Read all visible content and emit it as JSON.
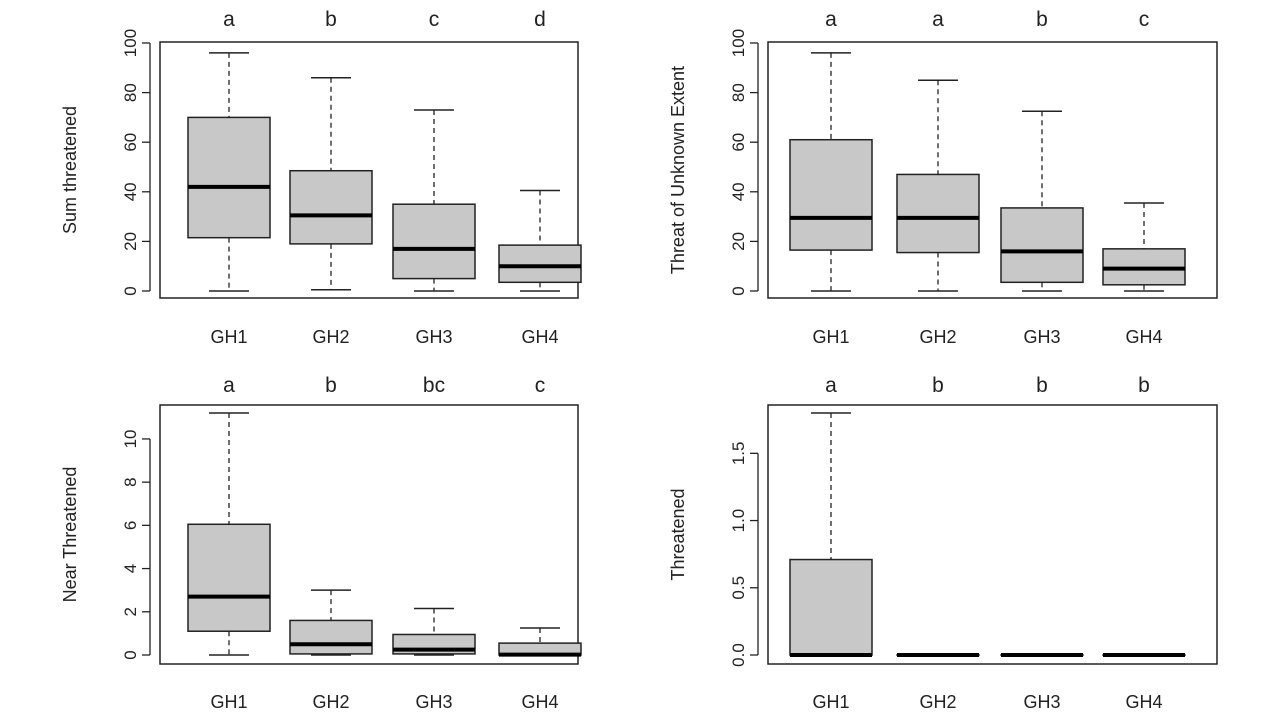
{
  "figure": {
    "background": "#ffffff",
    "box_fill": "#c8c8c8",
    "box_stroke": "#222222",
    "median_color": "#000000"
  },
  "chart_data": [
    {
      "type": "boxplot",
      "ylabel": "Sum threatened",
      "categories": [
        "GH1",
        "GH2",
        "GH3",
        "GH4"
      ],
      "ylim": [
        0,
        100
      ],
      "yticks": [
        0,
        20,
        40,
        60,
        80,
        100
      ],
      "significance": [
        "a",
        "b",
        "c",
        "d"
      ],
      "boxes": [
        {
          "min": 0,
          "q1": 21.5,
          "median": 42,
          "q3": 70,
          "max": 96
        },
        {
          "min": 0.5,
          "q1": 19,
          "median": 30.5,
          "q3": 48.5,
          "max": 86
        },
        {
          "min": 0,
          "q1": 5,
          "median": 17,
          "q3": 35,
          "max": 73
        },
        {
          "min": 0,
          "q1": 3.5,
          "median": 10,
          "q3": 18.5,
          "max": 40.5
        }
      ]
    },
    {
      "type": "boxplot",
      "ylabel": "Threat of Unknown Extent",
      "categories": [
        "GH1",
        "GH2",
        "GH3",
        "GH4"
      ],
      "ylim": [
        0,
        100
      ],
      "yticks": [
        0,
        20,
        40,
        60,
        80,
        100
      ],
      "significance": [
        "a",
        "a",
        "b",
        "c"
      ],
      "boxes": [
        {
          "min": 0,
          "q1": 16.5,
          "median": 29.5,
          "q3": 61,
          "max": 96
        },
        {
          "min": 0,
          "q1": 15.5,
          "median": 29.5,
          "q3": 47,
          "max": 85
        },
        {
          "min": 0,
          "q1": 3.5,
          "median": 16,
          "q3": 33.5,
          "max": 72.5
        },
        {
          "min": 0,
          "q1": 2.5,
          "median": 9,
          "q3": 17,
          "max": 35.5
        }
      ]
    },
    {
      "type": "boxplot",
      "ylabel": "Near Threatened",
      "categories": [
        "GH1",
        "GH2",
        "GH3",
        "GH4"
      ],
      "ylim": [
        0,
        11.2
      ],
      "yticks": [
        0,
        2,
        4,
        6,
        8,
        10
      ],
      "significance": [
        "a",
        "b",
        "bc",
        "c"
      ],
      "boxes": [
        {
          "min": 0,
          "q1": 1.1,
          "median": 2.7,
          "q3": 6.05,
          "max": 11.2
        },
        {
          "min": 0,
          "q1": 0.05,
          "median": 0.5,
          "q3": 1.6,
          "max": 3.0
        },
        {
          "min": 0,
          "q1": 0.05,
          "median": 0.25,
          "q3": 0.95,
          "max": 2.15
        },
        {
          "min": 0,
          "q1": 0,
          "median": 0.02,
          "q3": 0.55,
          "max": 1.25
        }
      ]
    },
    {
      "type": "boxplot",
      "ylabel": "Threatened",
      "categories": [
        "GH1",
        "GH2",
        "GH3",
        "GH4"
      ],
      "ylim": [
        0,
        1.8
      ],
      "yticks": [
        "0.0",
        "0.5",
        "1.0",
        "1.5"
      ],
      "significance": [
        "a",
        "b",
        "b",
        "b"
      ],
      "boxes": [
        {
          "min": 0,
          "q1": 0,
          "median": 0,
          "q3": 0.71,
          "max": 1.8
        },
        {
          "min": 0,
          "q1": 0,
          "median": 0,
          "q3": 0,
          "max": 0
        },
        {
          "min": 0,
          "q1": 0,
          "median": 0,
          "q3": 0,
          "max": 0
        },
        {
          "min": 0,
          "q1": 0,
          "median": 0,
          "q3": 0,
          "max": 0
        }
      ]
    }
  ]
}
